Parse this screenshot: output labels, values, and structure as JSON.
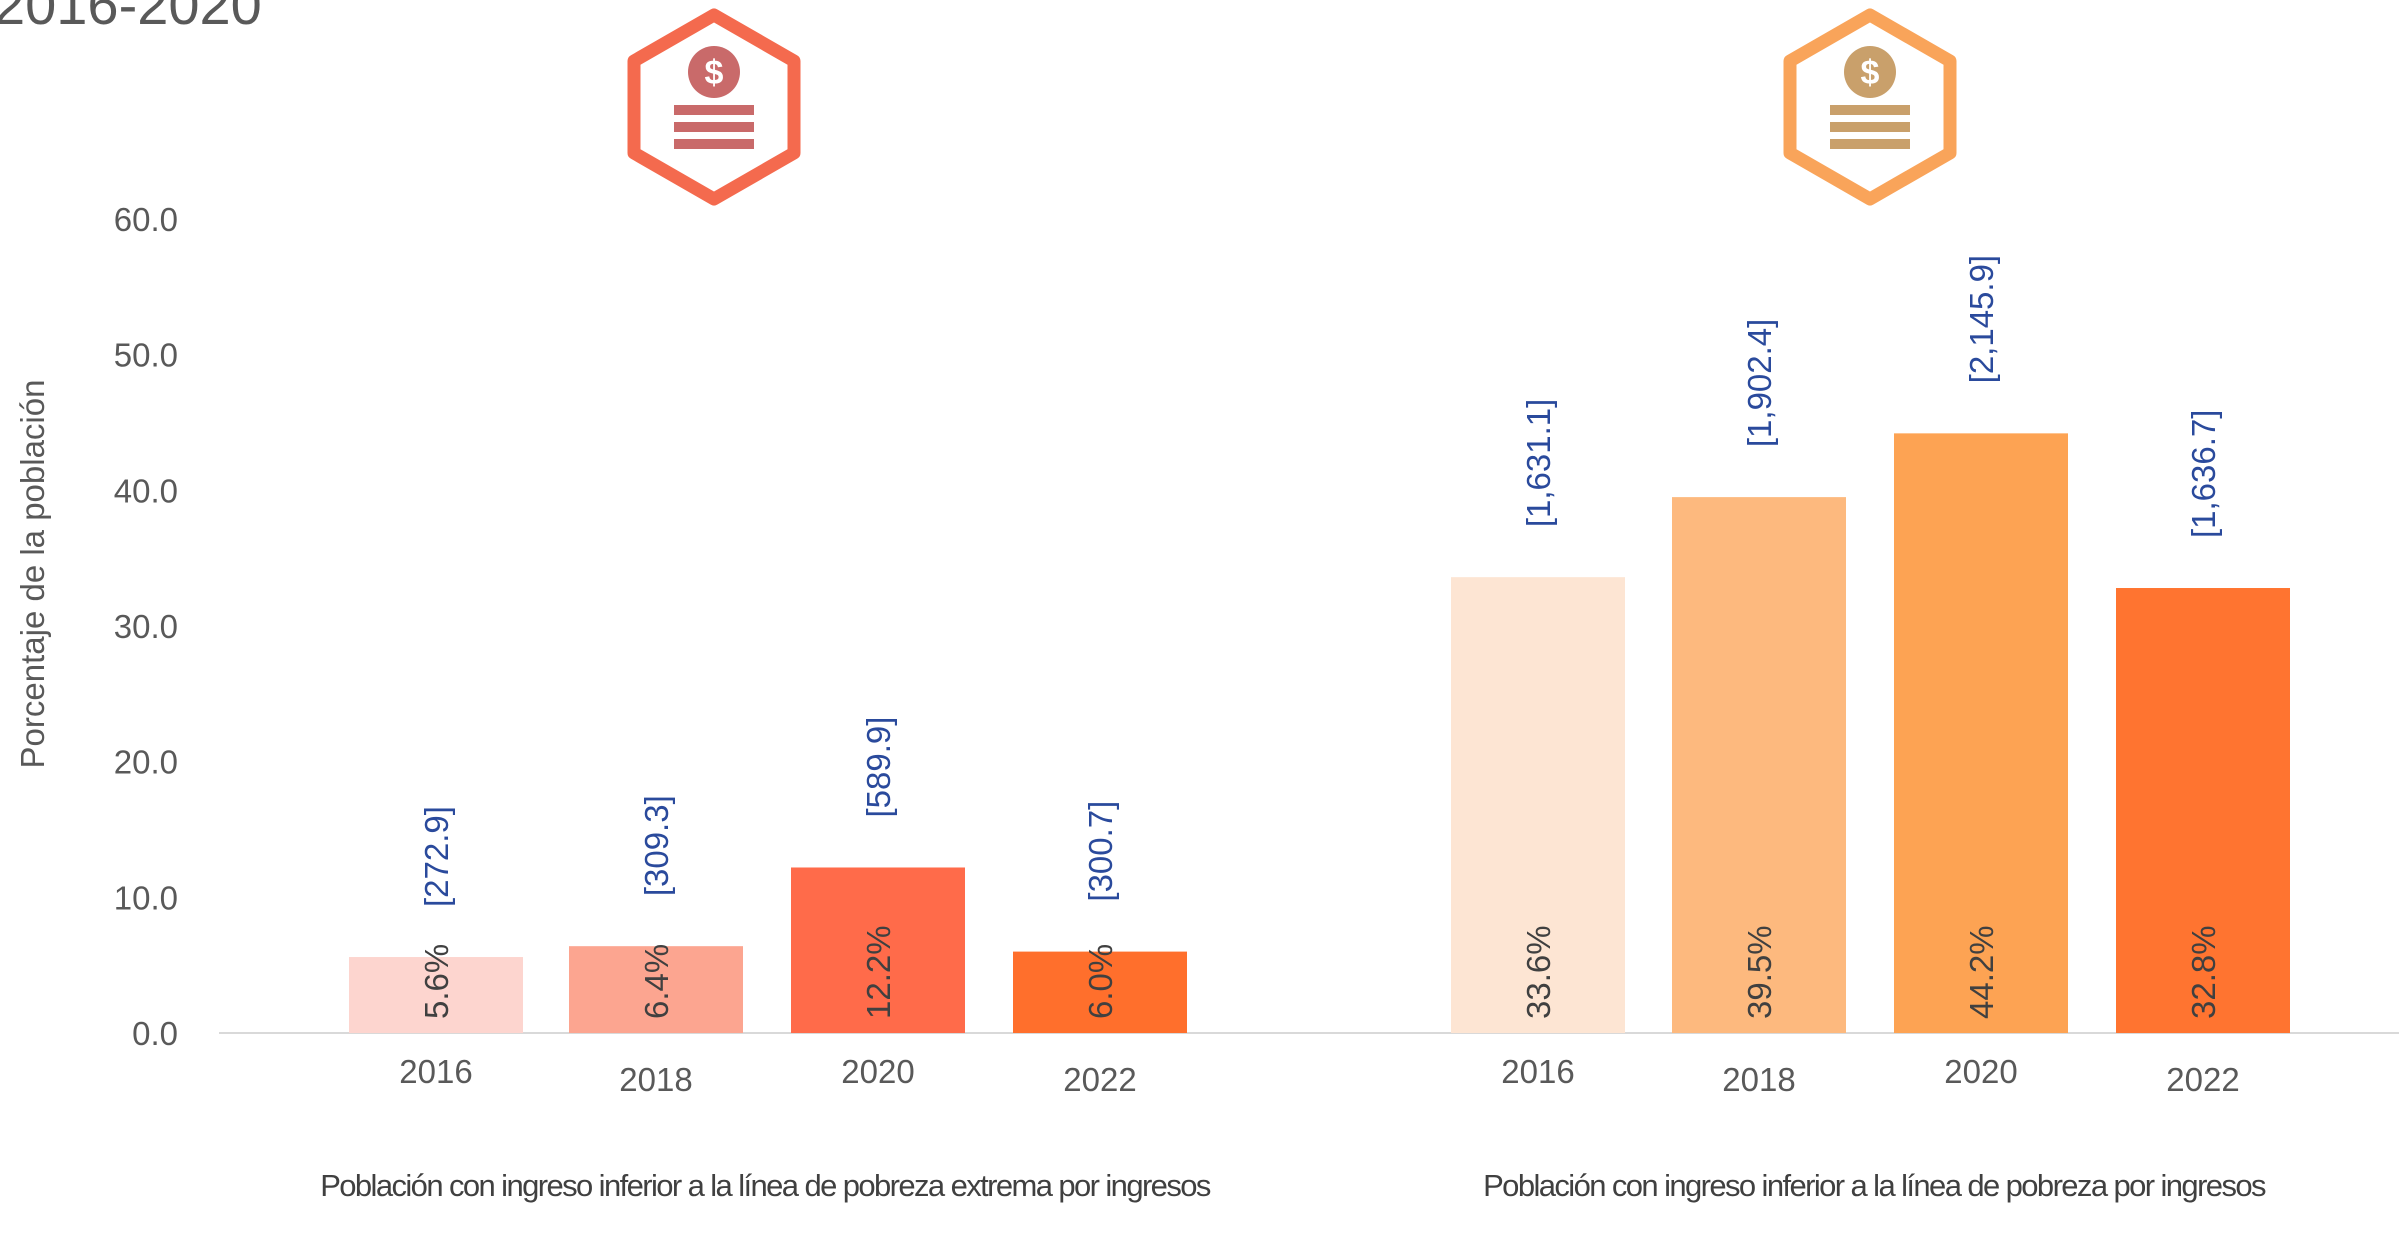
{
  "chart_data": {
    "type": "bar",
    "title": "2016-2020",
    "ylabel": "Porcentaje de la población",
    "ylim": [
      0,
      60
    ],
    "yticks": [
      {
        "value": 0,
        "label": "0.0"
      },
      {
        "value": 10,
        "label": "10.0"
      },
      {
        "value": 20,
        "label": "20.0"
      },
      {
        "value": 30,
        "label": "30.0"
      },
      {
        "value": 40,
        "label": "40.0"
      },
      {
        "value": 50,
        "label": "50.0"
      },
      {
        "value": 60,
        "label": "60.0"
      }
    ],
    "groups": [
      {
        "name": "Población con ingreso inferior a la línea de pobreza extrema por ingresos",
        "categories": [
          "2016",
          "2018",
          "2020",
          "2022"
        ],
        "values": [
          5.6,
          6.4,
          12.2,
          6.0
        ],
        "value_labels": [
          "5.6%",
          "6.4%",
          "12.2%",
          "6.0%"
        ],
        "counts": [
          272.9,
          309.3,
          589.9,
          300.7
        ],
        "count_labels": [
          "[272.9]",
          "[309.3]",
          "[589.9]",
          "[300.7]"
        ],
        "colors": [
          "#fdd5cf",
          "#fca590",
          "#ff6b4a",
          "#ff6f2c"
        ]
      },
      {
        "name": "Población con ingreso inferior a la línea de pobreza por ingresos",
        "categories": [
          "2016",
          "2018",
          "2020",
          "2022"
        ],
        "values": [
          33.6,
          39.5,
          44.2,
          32.8
        ],
        "value_labels": [
          "33.6%",
          "39.5%",
          "44.2%",
          "32.8%"
        ],
        "counts": [
          1631.1,
          1902.4,
          2145.9,
          1636.7
        ],
        "count_labels": [
          "[1,631.1]",
          "[1,902.4]",
          "[2,145.9]",
          "[1,636.7]"
        ],
        "colors": [
          "#fde5d3",
          "#fdb97e",
          "#fda353",
          "#ff7430"
        ]
      }
    ]
  }
}
